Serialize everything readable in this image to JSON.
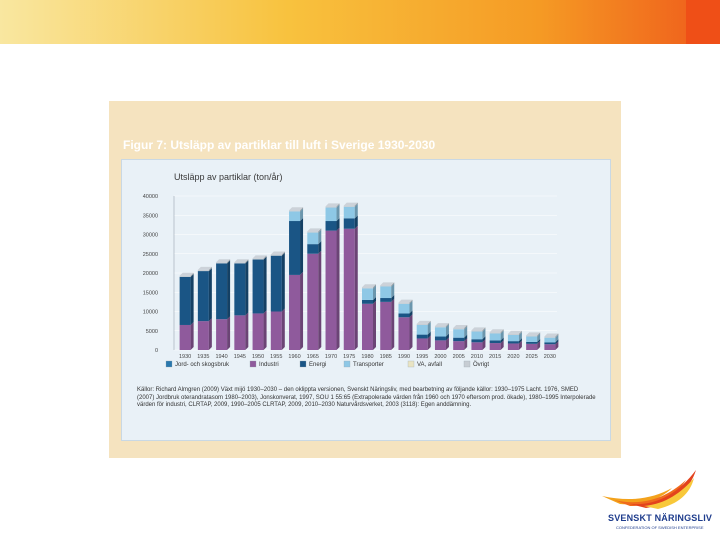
{
  "figure_title": "Figur 7: Utsläpp av partiklar till luft i Sverige 1930-2030",
  "source_text": "Källor: Richard Almgren (2009) Växt mijö 1930–2030 – den oklippta versionen, Svenskt Näringsliv, med bearbetning av följande källor: 1930–1975 Lacht. 1976, SMED (2007) Jordbruk oterandratasom 1980–2003), Jonskonverat, 1997, SOU 1 55:65 (Extrapolerade värden från 1960 och 1970 eftersom prod. ökade), 1980–1995 Interpolerade värden för industri, CLRTAP, 2009, 1990–2005 CLRTAP, 2009, 2010–2030 Naturvårdsverket, 2003 (3118): Egen anddämning.",
  "logo": {
    "name": "SVENSKT NÄRINGSLIV",
    "tagline": "CONFEDERATION OF SWEDISH ENTERPRISE"
  },
  "colors": {
    "jord": "#2a78ad",
    "industri": "#8f5a9c",
    "energi": "#1a5585",
    "transporter": "#8ec8e6",
    "va": "#e9e4c3",
    "ovrigt": "#c7cdd3"
  },
  "chart_data": {
    "type": "bar",
    "stacked": true,
    "title": "Utsläpp av partiklar (ton/år)",
    "ylim": [
      0,
      40000
    ],
    "yticks": [
      "0",
      "5000",
      "10000",
      "15000",
      "20000",
      "25000",
      "30000",
      "35000",
      "40000"
    ],
    "categories": [
      "1930",
      "1935",
      "1940",
      "1945",
      "1950",
      "1955",
      "1960",
      "1965",
      "1970",
      "1975",
      "1980",
      "1985",
      "1990",
      "1995",
      "2000",
      "2005",
      "2010",
      "2015",
      "2020",
      "2025",
      "2030"
    ],
    "series": [
      {
        "name": "Jord- och skogsbruk",
        "color": "#2a78ad",
        "values": [
          0,
          0,
          0,
          0,
          0,
          0,
          0,
          0,
          0,
          0,
          0,
          0,
          0,
          0,
          0,
          0,
          0,
          0,
          0,
          0,
          0
        ]
      },
      {
        "name": "Industri",
        "color": "#8f5a9c",
        "values": [
          6500,
          7500,
          8000,
          9000,
          9500,
          10000,
          19500,
          25000,
          31000,
          31500,
          12000,
          12500,
          8500,
          3000,
          2500,
          2300,
          2000,
          1800,
          1700,
          1600,
          1500
        ]
      },
      {
        "name": "Energi",
        "color": "#1a5585",
        "values": [
          12500,
          13000,
          14500,
          13500,
          14000,
          14500,
          14000,
          2500,
          2500,
          2700,
          1000,
          1000,
          1000,
          1000,
          1000,
          900,
          800,
          700,
          600,
          500,
          500
        ]
      },
      {
        "name": "Transporter",
        "color": "#8ec8e6",
        "values": [
          0,
          0,
          0,
          0,
          0,
          0,
          2500,
          3000,
          3500,
          3000,
          3000,
          3000,
          2500,
          2500,
          2400,
          2200,
          2000,
          1800,
          1600,
          1400,
          1200
        ]
      },
      {
        "name": "VA, avfall",
        "color": "#e9e4c3",
        "values": [
          0,
          0,
          0,
          0,
          0,
          0,
          0,
          0,
          0,
          0,
          0,
          0,
          0,
          0,
          0,
          0,
          0,
          0,
          0,
          0,
          0
        ]
      },
      {
        "name": "Övrigt",
        "color": "#c7cdd3",
        "values": [
          300,
          300,
          300,
          300,
          300,
          300,
          300,
          300,
          300,
          300,
          300,
          300,
          300,
          300,
          300,
          300,
          300,
          300,
          300,
          300,
          300
        ]
      }
    ]
  }
}
